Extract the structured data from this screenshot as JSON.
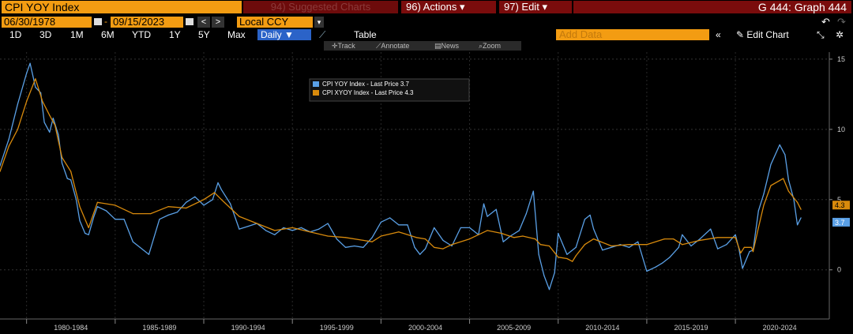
{
  "toolbar": {
    "ticker": "CPI YOY Index",
    "suggested": "94) Suggested Charts",
    "actions": "96) Actions",
    "edit": "97) Edit",
    "graph_title": "G 444: Graph 444",
    "start_date": "06/30/1978",
    "end_date": "09/15/2023",
    "currency": "Local CCY",
    "periods": [
      "1D",
      "3D",
      "1M",
      "6M",
      "YTD",
      "1Y",
      "5Y",
      "Max"
    ],
    "frequency": "Daily",
    "table_label": "Table",
    "add_data_placeholder": "Add Data",
    "edit_chart": "Edit Chart",
    "subtools": [
      "Track",
      "Annotate",
      "News",
      "Zoom"
    ]
  },
  "colors": {
    "cpi": "#5aa0e6",
    "core": "#d88a0c",
    "orange": "#f39c12",
    "red": "#7a0c0c"
  },
  "chart_data": {
    "type": "line",
    "x_ticks": [
      "1980-1984",
      "1985-1989",
      "1990-1994",
      "1995-1999",
      "2000-2004",
      "2005-2009",
      "2010-2014",
      "2015-2019",
      "2020-2024"
    ],
    "xlim": [
      1978.5,
      2025.3
    ],
    "ylim": [
      -3.5,
      15.5
    ],
    "y_ticks": [
      0,
      5,
      10,
      15
    ],
    "legend": "top-center",
    "series": [
      {
        "name": "CPI YOY Index - Last Price",
        "last_value": "3.7",
        "x": [
          1978.5,
          1979.0,
          1979.5,
          1980.0,
          1980.2,
          1980.5,
          1980.8,
          1981.0,
          1981.3,
          1981.5,
          1981.8,
          1982.0,
          1982.3,
          1982.5,
          1982.8,
          1983.0,
          1983.3,
          1983.5,
          1983.8,
          1984.0,
          1984.5,
          1985.0,
          1985.5,
          1986.0,
          1986.4,
          1986.9,
          1987.5,
          1988.0,
          1988.5,
          1989.0,
          1989.5,
          1990.0,
          1990.5,
          1990.8,
          1991.0,
          1991.5,
          1992.0,
          1992.5,
          1993.0,
          1993.5,
          1994.0,
          1994.5,
          1995.0,
          1995.5,
          1996.0,
          1996.5,
          1997.0,
          1997.5,
          1998.0,
          1998.5,
          1999.0,
          1999.5,
          2000.0,
          2000.5,
          2001.0,
          2001.5,
          2001.9,
          2002.2,
          2002.5,
          2003.0,
          2003.5,
          2004.0,
          2004.5,
          2005.0,
          2005.5,
          2005.8,
          2006.0,
          2006.5,
          2006.9,
          2007.3,
          2007.8,
          2008.2,
          2008.6,
          2008.9,
          2009.2,
          2009.5,
          2009.8,
          2010.0,
          2010.5,
          2011.0,
          2011.5,
          2011.8,
          2012.0,
          2012.5,
          2013.0,
          2013.5,
          2014.0,
          2014.5,
          2015.0,
          2015.5,
          2015.9,
          2016.3,
          2016.8,
          2017.0,
          2017.5,
          2018.0,
          2018.6,
          2019.0,
          2019.5,
          2020.0,
          2020.2,
          2020.4,
          2020.8,
          2021.0,
          2021.3,
          2021.6,
          2022.0,
          2022.5,
          2022.8,
          2023.0,
          2023.3,
          2023.5,
          2023.7
        ],
        "values": [
          7.4,
          9.3,
          11.8,
          14.0,
          14.7,
          13.0,
          12.6,
          10.5,
          9.8,
          10.8,
          9.6,
          7.6,
          6.5,
          6.4,
          5.0,
          3.5,
          2.6,
          2.5,
          3.8,
          4.5,
          4.2,
          3.6,
          3.6,
          2.0,
          1.6,
          1.1,
          3.6,
          3.9,
          4.1,
          4.8,
          5.2,
          4.6,
          5.0,
          6.2,
          5.7,
          4.7,
          2.9,
          3.1,
          3.3,
          2.8,
          2.5,
          3.0,
          2.8,
          3.0,
          2.7,
          2.9,
          3.3,
          2.2,
          1.6,
          1.7,
          1.6,
          2.3,
          3.4,
          3.7,
          3.2,
          3.2,
          1.6,
          1.1,
          1.5,
          3.0,
          2.1,
          1.7,
          3.0,
          3.0,
          2.5,
          4.7,
          3.8,
          4.3,
          2.0,
          2.4,
          2.8,
          4.0,
          5.6,
          1.1,
          -0.4,
          -1.4,
          -0.2,
          2.6,
          1.1,
          1.6,
          3.6,
          3.9,
          2.9,
          1.4,
          1.6,
          1.8,
          1.6,
          2.0,
          -0.1,
          0.2,
          0.5,
          0.9,
          1.6,
          2.5,
          1.7,
          2.2,
          2.9,
          1.5,
          1.8,
          2.5,
          1.5,
          0.1,
          1.3,
          1.4,
          4.2,
          5.4,
          7.5,
          8.9,
          8.2,
          6.4,
          5.0,
          3.2,
          3.7
        ]
      },
      {
        "name": "CPI XYOY Index - Last Price",
        "last_value": "4.3",
        "x": [
          1978.5,
          1979.0,
          1979.5,
          1980.0,
          1980.5,
          1980.9,
          1981.3,
          1981.6,
          1982.0,
          1982.5,
          1983.0,
          1983.5,
          1984.0,
          1985.0,
          1986.0,
          1987.0,
          1988.0,
          1989.0,
          1990.0,
          1990.6,
          1991.0,
          1991.5,
          1992.0,
          1993.0,
          1994.0,
          1995.0,
          1996.0,
          1997.0,
          1998.0,
          1999.0,
          1999.5,
          2000.0,
          2001.0,
          2002.0,
          2002.5,
          2003.0,
          2003.5,
          2004.0,
          2005.0,
          2006.0,
          2006.8,
          2007.5,
          2008.0,
          2008.7,
          2009.0,
          2009.5,
          2010.0,
          2010.5,
          2010.8,
          2011.0,
          2011.5,
          2012.0,
          2013.0,
          2014.0,
          2015.0,
          2016.0,
          2016.5,
          2017.0,
          2018.0,
          2019.0,
          2020.0,
          2020.3,
          2020.5,
          2020.9,
          2021.0,
          2021.3,
          2021.6,
          2022.0,
          2022.7,
          2023.0,
          2023.5,
          2023.7
        ],
        "values": [
          7.0,
          8.8,
          10.0,
          12.0,
          13.6,
          12.0,
          11.0,
          10.3,
          8.0,
          7.0,
          4.5,
          3.0,
          4.8,
          4.6,
          4.0,
          4.0,
          4.5,
          4.4,
          5.0,
          5.5,
          5.0,
          4.4,
          3.8,
          3.3,
          2.8,
          3.0,
          2.7,
          2.4,
          2.3,
          2.1,
          2.0,
          2.4,
          2.7,
          2.3,
          2.2,
          1.6,
          1.5,
          1.8,
          2.2,
          2.8,
          2.6,
          2.3,
          2.4,
          2.2,
          1.8,
          1.7,
          0.9,
          0.8,
          0.6,
          1.0,
          1.8,
          2.2,
          1.7,
          1.8,
          1.8,
          2.2,
          2.2,
          1.8,
          2.1,
          2.3,
          2.3,
          1.2,
          1.6,
          1.6,
          1.3,
          3.0,
          4.6,
          6.0,
          6.5,
          5.6,
          4.8,
          4.3
        ]
      }
    ]
  }
}
